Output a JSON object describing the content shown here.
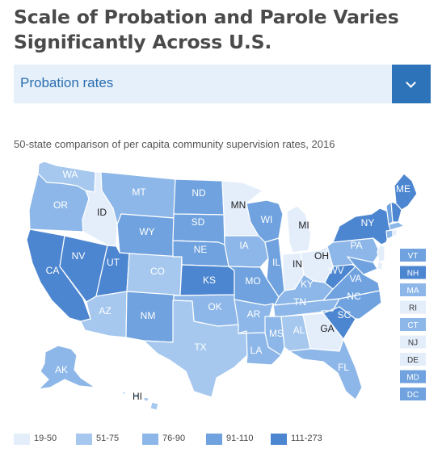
{
  "title": "Scale of Probation and Parole Varies Significantly Across U.S.",
  "dropdown": {
    "selected": "Probation rates",
    "icon": "chevron-down-icon"
  },
  "subtitle": "50-state comparison of per capita community supervision rates, 2016",
  "colors": {
    "r19_50": "#e4eefb",
    "r51_75": "#a6c8ee",
    "r76_90": "#8db7e8",
    "r91_110": "#6fa2de",
    "r111_273": "#4d86d0",
    "border": "#ffffff",
    "label": "#222222"
  },
  "legend": [
    {
      "label": "19-50",
      "bucket": "r19_50"
    },
    {
      "label": "51-75",
      "bucket": "r51_75"
    },
    {
      "label": "76-90",
      "bucket": "r76_90"
    },
    {
      "label": "91-110",
      "bucket": "r91_110"
    },
    {
      "label": "111-273",
      "bucket": "r111_273"
    }
  ],
  "states": {
    "WA": "r51_75",
    "OR": "r76_90",
    "CA": "r111_273",
    "NV": "r111_273",
    "ID": "r19_50",
    "MT": "r76_90",
    "WY": "r91_110",
    "UT": "r111_273",
    "CO": "r51_75",
    "AZ": "r51_75",
    "NM": "r91_110",
    "ND": "r91_110",
    "SD": "r91_110",
    "NE": "r91_110",
    "KS": "r111_273",
    "OK": "r76_90",
    "TX": "r51_75",
    "MN": "r19_50",
    "IA": "r76_90",
    "MO": "r91_110",
    "AR": "r76_90",
    "LA": "r76_90",
    "WI": "r91_110",
    "IL": "r91_110",
    "MI": "r19_50",
    "IN": "r19_50",
    "OH": "r19_50",
    "KY": "r76_90",
    "TN": "r76_90",
    "MS": "r76_90",
    "AL": "r51_75",
    "GA": "r19_50",
    "FL": "r76_90",
    "SC": "r111_273",
    "NC": "r91_110",
    "VA": "r91_110",
    "WV": "r111_273",
    "PA": "r76_90",
    "NY": "r111_273",
    "ME": "r111_273",
    "AK": "r76_90",
    "HI": "r51_75",
    "VT": "r91_110",
    "NH": "r111_273",
    "MA": "r76_90",
    "RI": "r19_50",
    "CT": "r76_90",
    "NJ": "r19_50",
    "DE": "r19_50",
    "MD": "r91_110",
    "DC": "r91_110"
  },
  "small_states": [
    "VT",
    "NH",
    "MA",
    "RI",
    "CT",
    "NJ",
    "DE",
    "MD",
    "DC"
  ]
}
